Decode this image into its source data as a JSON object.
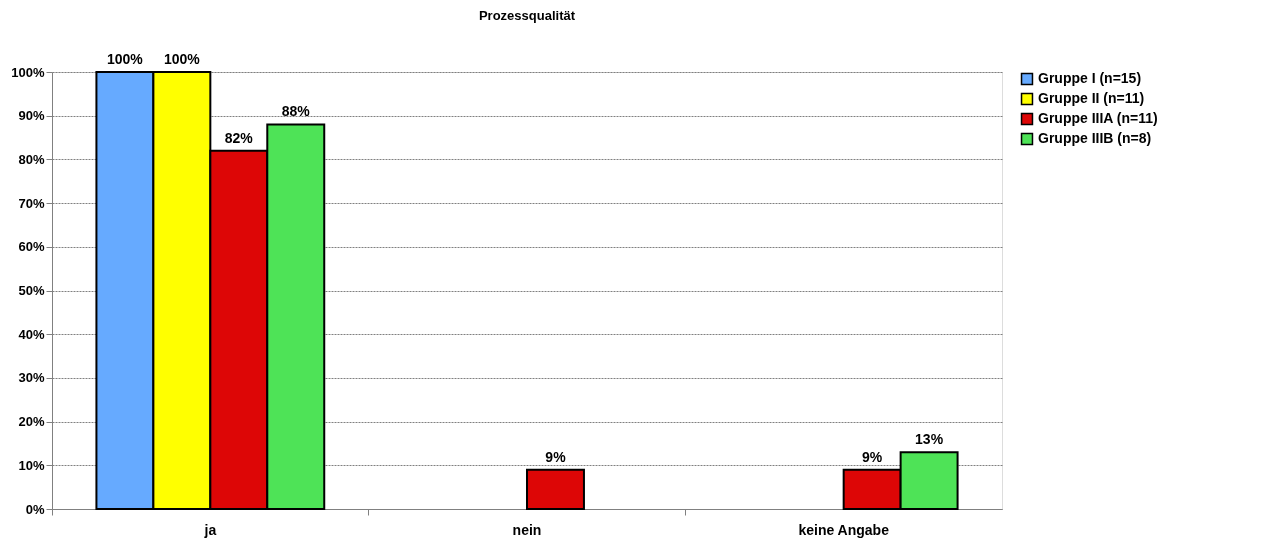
{
  "chart_data": {
    "type": "bar",
    "title": "Prozessqualität",
    "categories": [
      "ja",
      "nein",
      "keine Angabe"
    ],
    "series": [
      {
        "name": "Gruppe I (n=15)",
        "color": "#66aaff",
        "values": [
          100,
          null,
          null
        ],
        "value_labels": [
          "100%",
          null,
          null
        ]
      },
      {
        "name": "Gruppe II (n=11)",
        "color": "#ffff00",
        "values": [
          100,
          null,
          null
        ],
        "value_labels": [
          "100%",
          null,
          null
        ]
      },
      {
        "name": "Gruppe IIIA (n=11)",
        "color": "#dd0606",
        "values": [
          82,
          9,
          9
        ],
        "value_labels": [
          "82%",
          "9%",
          "9%"
        ]
      },
      {
        "name": "Gruppe IIIB (n=8)",
        "color": "#4ee357",
        "values": [
          88,
          null,
          13
        ],
        "value_labels": [
          "88%",
          null,
          "13%"
        ]
      }
    ],
    "ylim": [
      0,
      100
    ],
    "yticks": [
      {
        "value": 0,
        "label": "0%"
      },
      {
        "value": 10,
        "label": "10%"
      },
      {
        "value": 20,
        "label": "20%"
      },
      {
        "value": 30,
        "label": "30%"
      },
      {
        "value": 40,
        "label": "40%"
      },
      {
        "value": 50,
        "label": "50%"
      },
      {
        "value": 60,
        "label": "60%"
      },
      {
        "value": 70,
        "label": "70%"
      },
      {
        "value": 80,
        "label": "80%"
      },
      {
        "value": 90,
        "label": "90%"
      },
      {
        "value": 100,
        "label": "100%"
      }
    ],
    "grid": "y",
    "legend": "right"
  }
}
